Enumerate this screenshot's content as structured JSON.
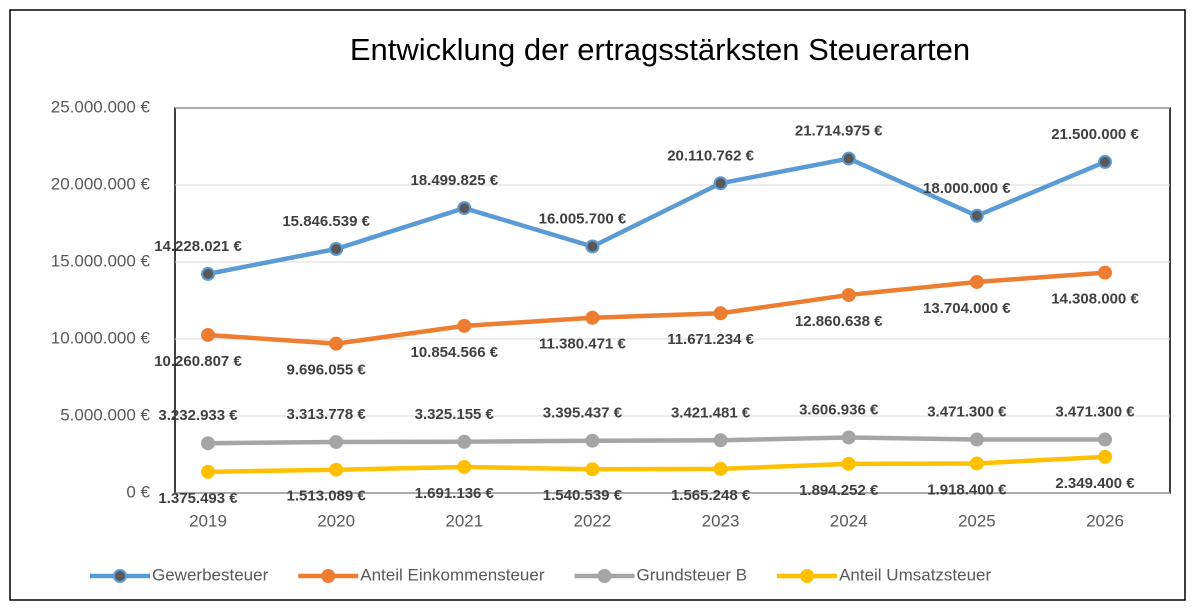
{
  "chart_data": {
    "type": "line",
    "title": "Entwicklung der ertragsstärksten Steuerarten",
    "categories": [
      "2019",
      "2020",
      "2021",
      "2022",
      "2023",
      "2024",
      "2025",
      "2026"
    ],
    "ylim": [
      0,
      25000000
    ],
    "yticks": [
      {
        "value": 0,
        "label": "0 €"
      },
      {
        "value": 5000000,
        "label": "5.000.000 €"
      },
      {
        "value": 10000000,
        "label": "10.000.000 €"
      },
      {
        "value": 15000000,
        "label": "15.000.000 €"
      },
      {
        "value": 20000000,
        "label": "20.000.000 €"
      },
      {
        "value": 25000000,
        "label": "25.000.000 €"
      }
    ],
    "grid": true,
    "legend": "bottom",
    "series": [
      {
        "name": "Gewerbesteuer",
        "color": "#5b9bd5",
        "marker_color": "#595959",
        "values": [
          14228021,
          15846539,
          18499825,
          16005700,
          20110762,
          21714975,
          18000000,
          21500000
        ],
        "value_labels": [
          "14.228.021 €",
          "15.846.539 €",
          "18.499.825 €",
          "16.005.700 €",
          "20.110.762 €",
          "21.714.975 €",
          "18.000.000 €",
          "21.500.000 €"
        ]
      },
      {
        "name": "Anteil Einkommensteuer",
        "color": "#ed7d31",
        "marker_color": "#ed7d31",
        "values": [
          10260807,
          9696055,
          10854566,
          11380471,
          11671234,
          12860638,
          13704000,
          14308000
        ],
        "value_labels": [
          "10.260.807 €",
          "9.696.055 €",
          "10.854.566 €",
          "11.380.471 €",
          "11.671.234 €",
          "12.860.638 €",
          "13.704.000 €",
          "14.308.000 €"
        ]
      },
      {
        "name": "Grundsteuer B",
        "color": "#a5a5a5",
        "marker_color": "#a5a5a5",
        "values": [
          3232933,
          3313778,
          3325155,
          3395437,
          3421481,
          3606936,
          3471300,
          3471300
        ],
        "value_labels": [
          "3.232.933 €",
          "3.313.778 €",
          "3.325.155 €",
          "3.395.437 €",
          "3.421.481 €",
          "3.606.936 €",
          "3.471.300 €",
          "3.471.300 €"
        ]
      },
      {
        "name": "Anteil Umsatzsteuer",
        "color": "#ffc000",
        "marker_color": "#ffc000",
        "values": [
          1375493,
          1513089,
          1691136,
          1540539,
          1565248,
          1894252,
          1918400,
          2349400
        ],
        "value_labels": [
          "1.375.493 €",
          "1.513.089 €",
          "1.691.136 €",
          "1.540.539 €",
          "1.565.248 €",
          "1.894.252 €",
          "1.918.400 €",
          "2.349.400 €"
        ]
      }
    ]
  }
}
